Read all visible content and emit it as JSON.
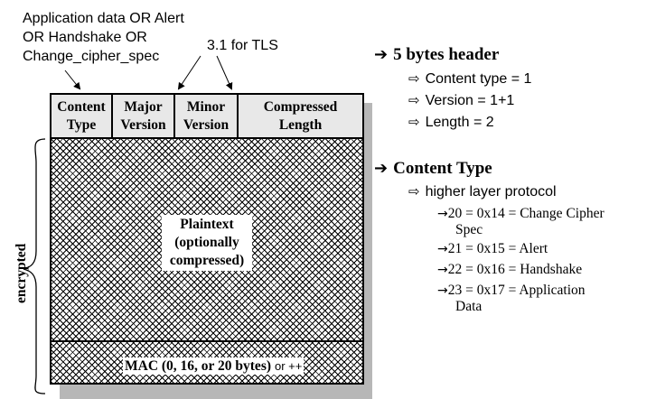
{
  "left": {
    "annotation_content_type": [
      "Application data OR Alert",
      "OR Handshake OR",
      "Change_cipher_spec"
    ],
    "annotation_tls": "3.1 for TLS",
    "header_fields": [
      {
        "line1": "Content",
        "line2": "Type"
      },
      {
        "line1": "Major",
        "line2": "Version"
      },
      {
        "line1": "Minor",
        "line2": "Version"
      },
      {
        "line1": "Compressed",
        "line2": "Length"
      }
    ],
    "plaintext": [
      "Plaintext",
      "(optionally",
      "compressed)"
    ],
    "mac": "MAC (0, 16, or 20 bytes)",
    "mac_suffix": "or ++",
    "encrypted": "encrypted"
  },
  "right": {
    "header_title": "5 bytes header",
    "header_items": [
      "Content type = 1",
      "Version = 1+1",
      "Length = 2"
    ],
    "content_title": "Content Type",
    "content_sub": "higher layer protocol",
    "content_values": [
      {
        "line1": "20 = 0x14 = Change Cipher",
        "line2": "Spec"
      },
      {
        "line1": "21 = 0x15 = Alert",
        "line2": ""
      },
      {
        "line1": "22 = 0x16 = Handshake",
        "line2": ""
      },
      {
        "line1": "23 = 0x17 = Application",
        "line2": "Data"
      }
    ]
  }
}
